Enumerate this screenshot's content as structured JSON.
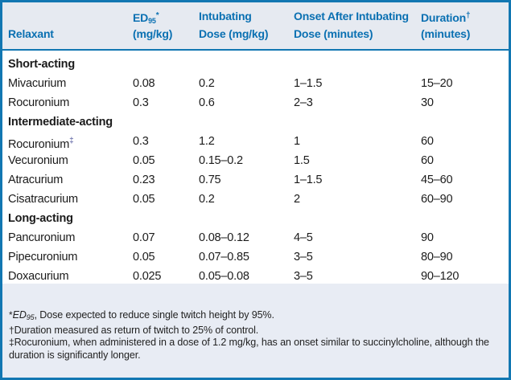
{
  "accent": {
    "border_blue": "#1277b2",
    "header_text_blue": "#0a70b2",
    "header_bg": "#e6eaf1",
    "footnote_bg": "#e8ecf4",
    "body_bg": "#ffffff"
  },
  "header": {
    "col1": {
      "line2": "Relaxant"
    },
    "col2": {
      "base": "ED",
      "sub": "95",
      "sup": "*",
      "line2": "(mg/kg)"
    },
    "col3": {
      "line1": "Intubating",
      "line2": "Dose (mg/kg)"
    },
    "col4": {
      "line1": "Onset After Intubating",
      "line2": "Dose (minutes)"
    },
    "col5": {
      "base": "Duration",
      "sup": "†",
      "line2": "(minutes)"
    }
  },
  "rows": [
    {
      "type": "group",
      "name": "Short-acting"
    },
    {
      "type": "data",
      "name": "Mivacurium",
      "ed95": "0.08",
      "dose": "0.2",
      "onset": "1–1.5",
      "duration": "15–20"
    },
    {
      "type": "data",
      "name": "Rocuronium",
      "ed95": "0.3",
      "dose": "0.6",
      "onset": "2–3",
      "duration": "30"
    },
    {
      "type": "group",
      "name": "Intermediate-acting"
    },
    {
      "type": "data",
      "name": "Rocuronium",
      "name_sup": "‡",
      "ed95": "0.3",
      "dose": "1.2",
      "onset": "1",
      "duration": "60"
    },
    {
      "type": "data",
      "name": "Vecuronium",
      "ed95": "0.05",
      "dose": "0.15–0.2",
      "onset": "1.5",
      "duration": "60"
    },
    {
      "type": "data",
      "name": "Atracurium",
      "ed95": "0.23",
      "dose": "0.75",
      "onset": "1–1.5",
      "duration": "45–60"
    },
    {
      "type": "data",
      "name": "Cisatracurium",
      "ed95": "0.05",
      "dose": "0.2",
      "onset": "2",
      "duration": "60–90"
    },
    {
      "type": "group",
      "name": "Long-acting"
    },
    {
      "type": "data",
      "name": "Pancuronium",
      "ed95": "0.07",
      "dose": "0.08–0.12",
      "onset": "4–5",
      "duration": "90"
    },
    {
      "type": "data",
      "name": "Pipecuronium",
      "ed95": "0.05",
      "dose": "0.07–0.85",
      "onset": "3–5",
      "duration": "80–90"
    },
    {
      "type": "data",
      "name": "Doxacurium",
      "ed95": "0.025",
      "dose": "0.05–0.08",
      "onset": "3–5",
      "duration": "90–120"
    }
  ],
  "footnotes": {
    "fn1": {
      "marker": "*",
      "term_italic": "ED",
      "term_sub": "95",
      "text": ", Dose expected to reduce single twitch height by 95%."
    },
    "fn2": {
      "marker": "†",
      "text": "Duration measured as return of twitch to 25% of control."
    },
    "fn3": {
      "marker": "‡",
      "text": "Rocuronium, when administered in a dose of 1.2 mg/kg, has an onset similar to succinylcholine, although the duration is significantly longer."
    }
  }
}
